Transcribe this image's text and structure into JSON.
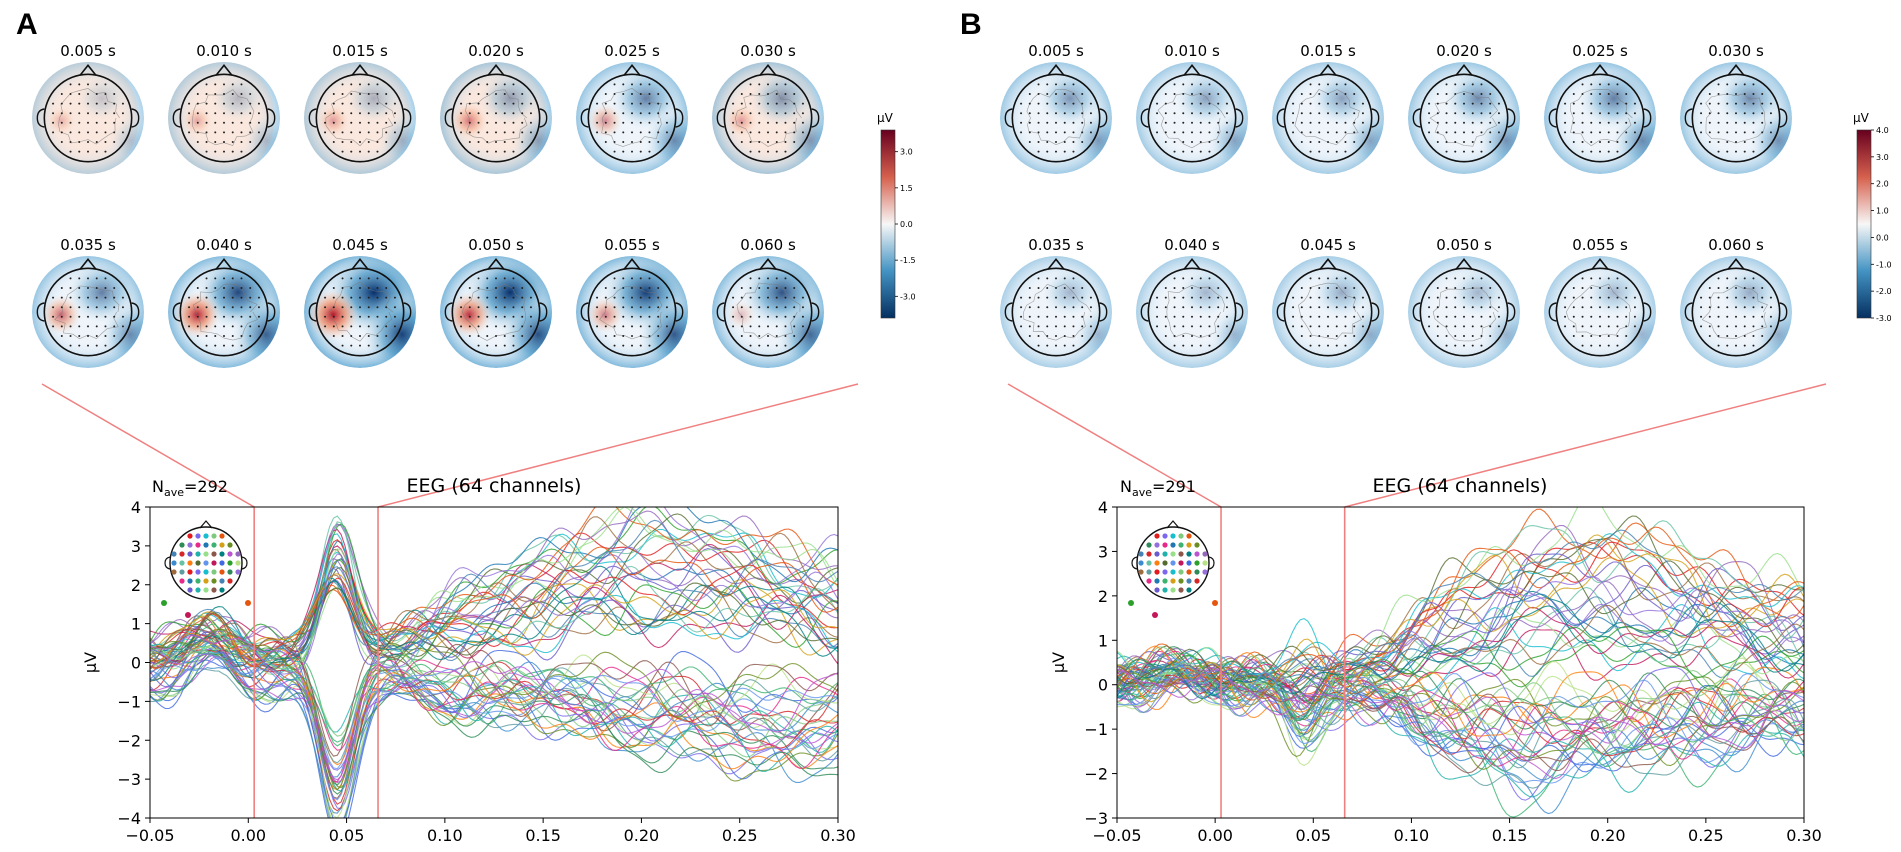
{
  "chart_data": [
    {
      "panel": "A",
      "type": "line",
      "title": "EEG (64 channels)",
      "nave_label": "N",
      "nave_sub": "ave",
      "nave_value": "=292",
      "xlabel": "",
      "ylabel": "µV",
      "xlim": [
        -0.05,
        0.3
      ],
      "ylim": [
        -4,
        4
      ],
      "xticks": [
        -0.05,
        0.0,
        0.05,
        0.1,
        0.15,
        0.2,
        0.25,
        0.3
      ],
      "xtick_labels": [
        "−0.05",
        "0.00",
        "0.05",
        "0.10",
        "0.15",
        "0.20",
        "0.25",
        "0.30"
      ],
      "yticks": [
        -4,
        -3,
        -2,
        -1,
        0,
        1,
        2,
        3,
        4
      ],
      "ytick_labels": [
        "−4",
        "−3",
        "−2",
        "−1",
        "0",
        "1",
        "2",
        "3",
        "4"
      ],
      "highlight_times": [
        0.003,
        0.066
      ],
      "n_channels": 64,
      "series_profiles": {
        "group_up": {
          "pre": [
            -0.2,
            0.5
          ],
          "n1": [
            1.5,
            3.5
          ],
          "plateau": [
            1.0,
            3.8
          ],
          "peak_t": 0.21
        },
        "group_down": {
          "pre": [
            -0.8,
            0.3
          ],
          "n1": [
            -4.0,
            -2.0
          ],
          "plateau": [
            -2.8,
            -0.5
          ],
          "trough_t": 0.26
        }
      },
      "topomaps": {
        "times": [
          "0.005 s",
          "0.010 s",
          "0.015 s",
          "0.020 s",
          "0.025 s",
          "0.030 s",
          "0.035 s",
          "0.040 s",
          "0.045 s",
          "0.050 s",
          "0.055 s",
          "0.060 s"
        ],
        "pos_strength": [
          0.25,
          0.3,
          0.35,
          0.5,
          0.45,
          0.35,
          0.6,
          0.85,
          1.0,
          0.8,
          0.5,
          0.25
        ],
        "neg_strength": [
          0.2,
          0.25,
          0.3,
          0.4,
          0.55,
          0.45,
          0.55,
          0.8,
          1.0,
          0.9,
          0.85,
          0.75
        ],
        "colorbar_unit": "µV",
        "colorbar_ticks": [
          "3.0",
          "1.5",
          "0.0",
          "-1.5",
          "-3.0"
        ],
        "colorbar_vlim": [
          -3.9,
          3.9
        ]
      }
    },
    {
      "panel": "B",
      "type": "line",
      "title": "EEG (64 channels)",
      "nave_label": "N",
      "nave_sub": "ave",
      "nave_value": "=291",
      "xlabel": "",
      "ylabel": "µV",
      "xlim": [
        -0.05,
        0.3
      ],
      "ylim": [
        -3,
        4
      ],
      "xticks": [
        -0.05,
        0.0,
        0.05,
        0.1,
        0.15,
        0.2,
        0.25,
        0.3
      ],
      "xtick_labels": [
        "−0.05",
        "0.00",
        "0.05",
        "0.10",
        "0.15",
        "0.20",
        "0.25",
        "0.30"
      ],
      "yticks": [
        -3,
        -2,
        -1,
        0,
        1,
        2,
        3,
        4
      ],
      "ytick_labels": [
        "−3",
        "−2",
        "−1",
        "0",
        "1",
        "2",
        "3",
        "4"
      ],
      "highlight_times": [
        0.003,
        0.066
      ],
      "n_channels": 64,
      "series_profiles": {
        "group_up": {
          "pre": [
            -0.1,
            0.3
          ],
          "n1": [
            -0.5,
            0.8
          ],
          "plateau": [
            0.5,
            3.6
          ],
          "peak_t": 0.19
        },
        "group_down": {
          "pre": [
            -0.3,
            0.3
          ],
          "n1": [
            -1.5,
            -0.2
          ],
          "plateau": [
            -2.2,
            -0.3
          ],
          "trough_t": 0.16
        }
      },
      "topomaps": {
        "times": [
          "0.005 s",
          "0.010 s",
          "0.015 s",
          "0.020 s",
          "0.025 s",
          "0.030 s",
          "0.035 s",
          "0.040 s",
          "0.045 s",
          "0.050 s",
          "0.055 s",
          "0.060 s"
        ],
        "pos_strength": [
          0,
          0,
          0,
          0,
          0,
          0,
          0,
          0,
          0,
          0,
          0,
          0
        ],
        "neg_strength": [
          0.45,
          0.4,
          0.4,
          0.5,
          0.55,
          0.5,
          0.3,
          0.3,
          0.35,
          0.3,
          0.3,
          0.35
        ],
        "colorbar_unit": "µV",
        "colorbar_ticks": [
          "4.0",
          "3.0",
          "2.0",
          "1.0",
          "0.0",
          "-1.0",
          "-2.0",
          "-3.0"
        ],
        "colorbar_vlim": [
          -3.0,
          4.0
        ]
      }
    }
  ],
  "colors": {
    "highlight": "#f08080",
    "cmap_neg": "#08306b",
    "cmap_mid": "#f7f7f7",
    "cmap_pos": "#67001f"
  }
}
